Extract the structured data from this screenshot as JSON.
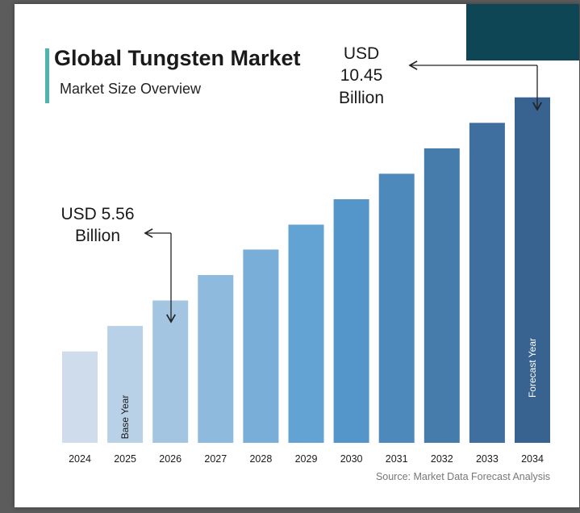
{
  "header": {
    "title": "Global Tungsten Market",
    "subtitle": "Market Size Overview"
  },
  "callouts": {
    "start": "USD 5.56 Billion",
    "end": "USD 10.45 Billion"
  },
  "source": "Source: Market Data Forecast Analysis",
  "colors": {
    "accent": "#4fb3b0",
    "corner": "#0f4656",
    "bar_light": "#cfdcec",
    "bar_dark": "#38628f"
  },
  "chart_data": {
    "type": "bar",
    "categories": [
      "2024",
      "2025",
      "2026",
      "2027",
      "2028",
      "2029",
      "2030",
      "2031",
      "2032",
      "2033",
      "2034"
    ],
    "values": [
      5.56,
      6.05,
      6.54,
      7.03,
      7.52,
      8.0,
      8.49,
      8.98,
      9.47,
      9.96,
      10.45
    ],
    "bar_annotations": [
      {
        "category": "2025",
        "text": "Base Year"
      },
      {
        "category": "2034",
        "text": "Forecast Year"
      }
    ],
    "title": "Global Tungsten Market",
    "subtitle": "Market Size Overview",
    "xlabel": "",
    "ylabel": "",
    "grid": false,
    "legend": "none"
  }
}
